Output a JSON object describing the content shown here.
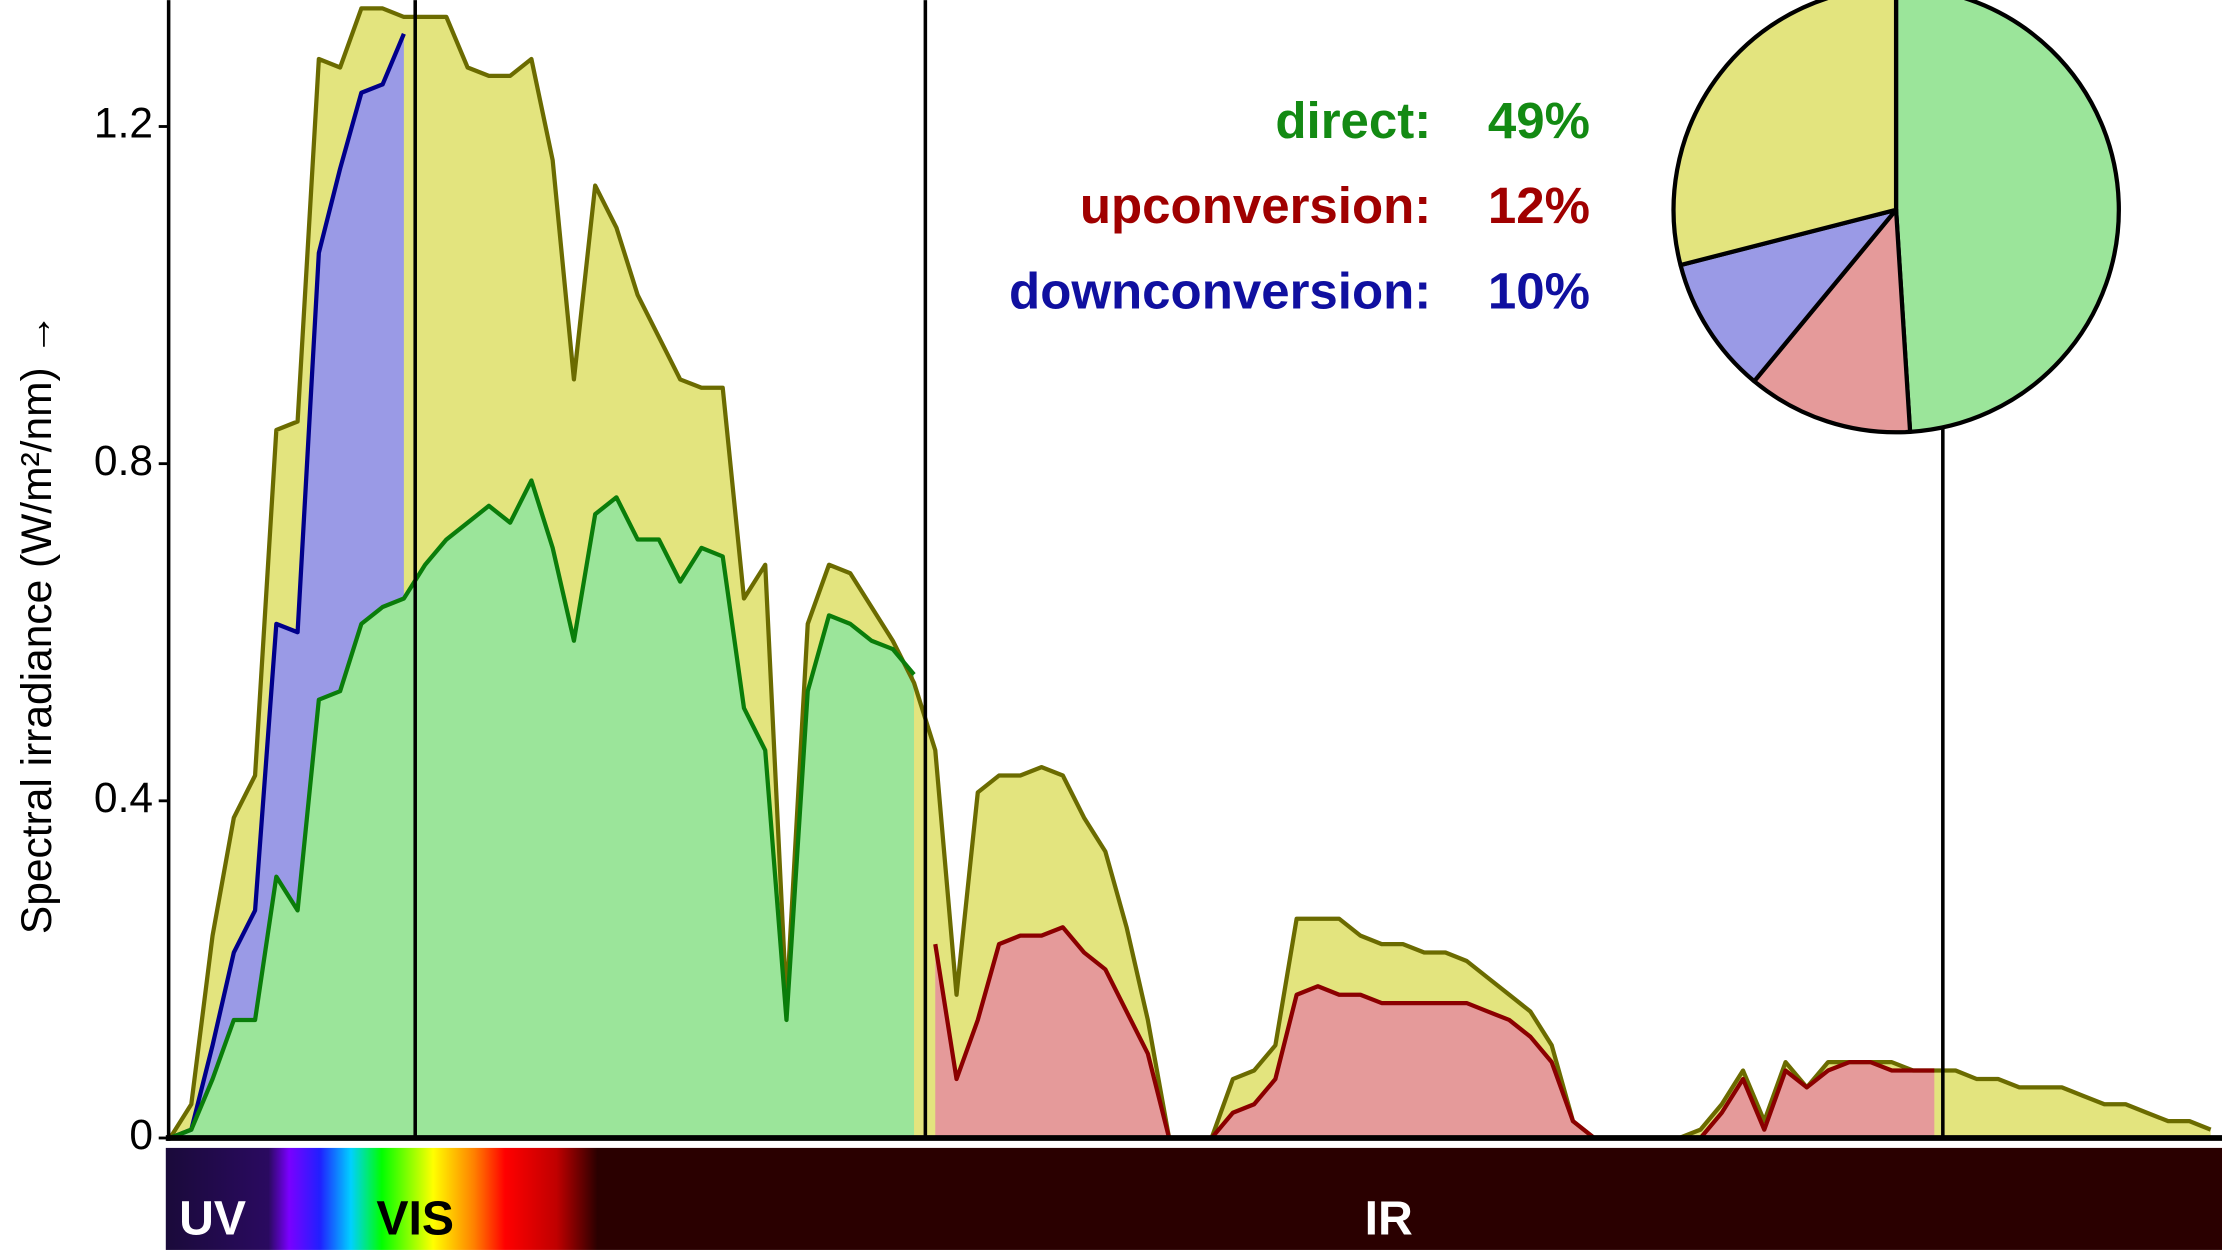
{
  "chart_data": [
    {
      "type": "area",
      "ylabel": "Spectral irradiance (W/m²/nm) →",
      "ylim": [
        0,
        1.35
      ],
      "yticks": [
        0,
        0.4,
        0.8,
        1.2
      ],
      "bands": [
        "UV",
        "VIS",
        "IR"
      ],
      "series": [
        {
          "color": "#e3e47e",
          "line_color": "#6b6b00",
          "values": [
            0,
            0.04,
            0.24,
            0.38,
            0.43,
            0.84,
            0.85,
            1.28,
            1.27,
            1.34,
            1.34,
            1.33,
            1.33,
            1.33,
            1.27,
            1.26,
            1.26,
            1.28,
            1.16,
            0.9,
            1.13,
            1.08,
            1.0,
            0.95,
            0.9,
            0.89,
            0.89,
            0.64,
            0.68,
            0.16,
            0.61,
            0.68,
            0.67,
            0.63,
            0.59,
            0.54,
            0.46,
            0.17,
            0.41,
            0.43,
            0.43,
            0.44,
            0.43,
            0.38,
            0.34,
            0.25,
            0.14,
            0,
            0,
            0,
            0.07,
            0.08,
            0.11,
            0.26,
            0.26,
            0.26,
            0.24,
            0.23,
            0.23,
            0.22,
            0.22,
            0.21,
            0.19,
            0.17,
            0.15,
            0.11,
            0.02,
            0,
            0,
            0,
            0,
            0,
            0.01,
            0.04,
            0.08,
            0.02,
            0.09,
            0.06,
            0.09,
            0.09,
            0.09,
            0.09,
            0.08,
            0.08,
            0.08,
            0.07,
            0.07,
            0.06,
            0.06,
            0.06,
            0.05,
            0.04,
            0.04,
            0.03,
            0.02,
            0.02,
            0.01
          ]
        },
        {
          "color": "#9a9ae6",
          "line_color": "#00008b",
          "values": [
            0,
            0.01,
            0.11,
            0.22,
            0.27,
            0.61,
            0.6,
            1.05,
            1.15,
            1.24,
            1.25,
            1.31,
            null,
            null,
            null,
            null,
            null,
            null,
            null,
            null,
            null,
            null,
            null,
            null,
            null,
            null,
            null,
            null,
            null,
            null,
            null,
            null,
            null,
            null,
            null,
            null,
            null,
            null,
            null,
            null,
            null,
            null,
            null,
            null,
            null,
            null,
            null,
            null,
            null,
            null,
            null,
            null,
            null,
            null,
            null,
            null,
            null,
            null,
            null,
            null,
            null,
            null,
            null,
            null,
            null,
            null,
            null,
            null,
            null,
            null,
            null,
            null,
            null,
            null,
            null,
            null,
            null,
            null,
            null,
            null,
            null,
            null,
            null,
            null,
            null,
            null,
            null,
            null,
            null,
            null,
            null,
            null,
            null,
            null,
            null,
            null,
            null
          ]
        },
        {
          "color": "#9be59a",
          "line_color": "#0a7d0a",
          "values": [
            0,
            0.01,
            0.07,
            0.14,
            0.14,
            0.31,
            0.27,
            0.52,
            0.53,
            0.61,
            0.63,
            0.64,
            0.68,
            0.71,
            0.73,
            0.75,
            0.73,
            0.78,
            0.7,
            0.59,
            0.74,
            0.76,
            0.71,
            0.71,
            0.66,
            0.7,
            0.69,
            0.51,
            0.46,
            0.14,
            0.53,
            0.62,
            0.61,
            0.59,
            0.58,
            0.55,
            null,
            null,
            null,
            null,
            null,
            null,
            null,
            null,
            null,
            null,
            null,
            null,
            null,
            null,
            null,
            null,
            null,
            null,
            null,
            null,
            null,
            null,
            null,
            null,
            null,
            null,
            null,
            null,
            null,
            null,
            null,
            null,
            null,
            null,
            null,
            null,
            null,
            null,
            null,
            null,
            null,
            null,
            null,
            null,
            null,
            null,
            null,
            null,
            null,
            null,
            null,
            null,
            null,
            null,
            null,
            null,
            null,
            null,
            null,
            null,
            null
          ]
        },
        {
          "color": "#e59a9a",
          "line_color": "#8b0000",
          "values": [
            null,
            null,
            null,
            null,
            null,
            null,
            null,
            null,
            null,
            null,
            null,
            null,
            null,
            null,
            null,
            null,
            null,
            null,
            null,
            null,
            null,
            null,
            null,
            null,
            null,
            null,
            null,
            null,
            null,
            null,
            null,
            null,
            null,
            null,
            null,
            null,
            0.23,
            0.07,
            0.14,
            0.23,
            0.24,
            0.24,
            0.25,
            0.22,
            0.2,
            0.15,
            0.1,
            0,
            0,
            0,
            0.03,
            0.04,
            0.07,
            0.17,
            0.18,
            0.17,
            0.17,
            0.16,
            0.16,
            0.16,
            0.16,
            0.16,
            0.15,
            0.14,
            0.12,
            0.09,
            0.02,
            0,
            0,
            0,
            0,
            0,
            0,
            0.03,
            0.07,
            0.01,
            0.08,
            0.06,
            0.08,
            0.09,
            0.09,
            0.08,
            0.08,
            0.08,
            null,
            null,
            null,
            null,
            null,
            null,
            null,
            null,
            null,
            null,
            null,
            null,
            null
          ]
        }
      ]
    },
    {
      "type": "pie",
      "categories": [
        "direct:",
        "upconversion:",
        "downconversion:",
        null
      ],
      "values": [
        49,
        12,
        10,
        29
      ],
      "value_labels": [
        "49%",
        "12%",
        "10%",
        null
      ],
      "colors": [
        "#9be59a",
        "#e59a9a",
        "#9a9ae6",
        "#e3e47e"
      ],
      "label_colors": [
        "#138a13",
        "#a00000",
        "#1010a0",
        null
      ]
    }
  ]
}
